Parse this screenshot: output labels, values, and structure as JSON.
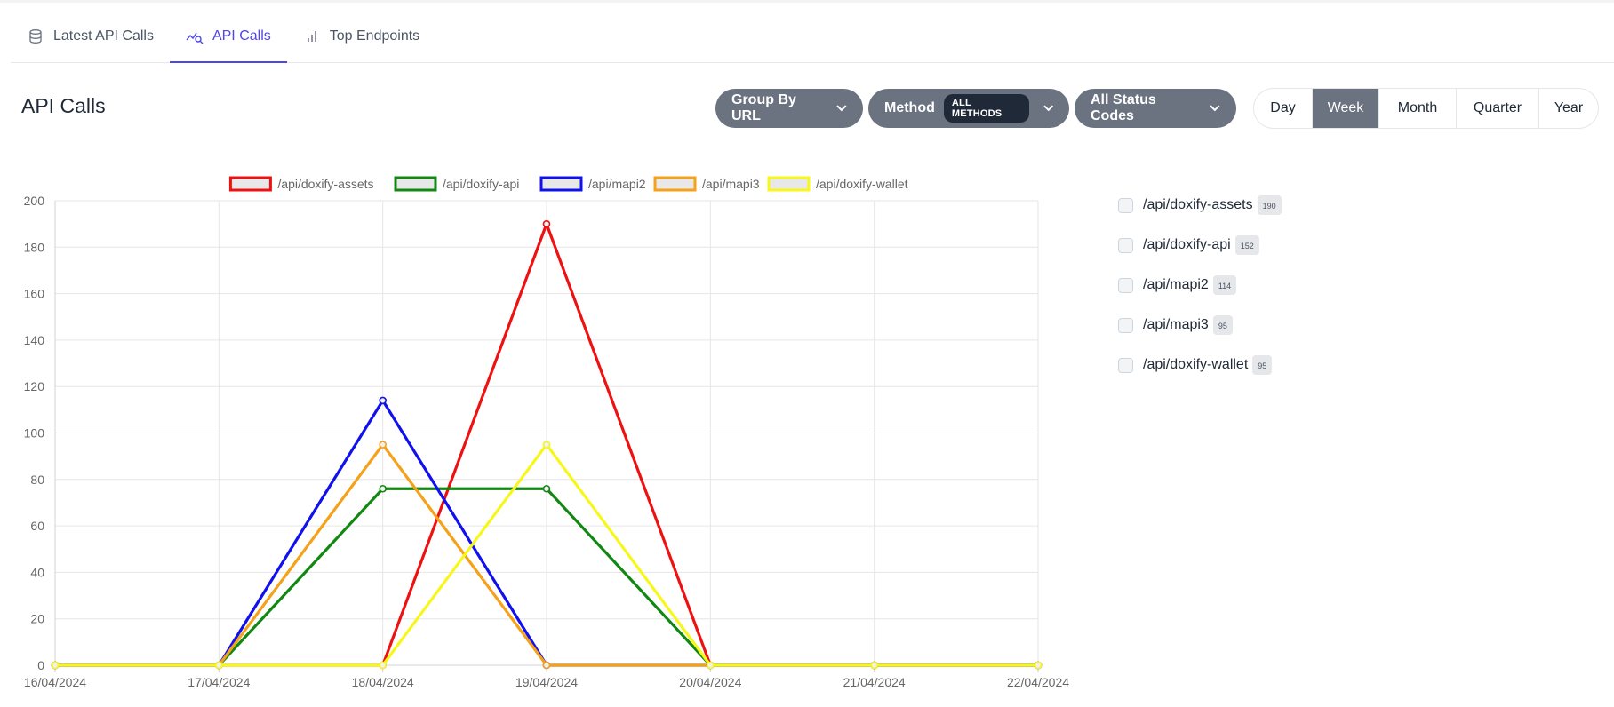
{
  "tabs": [
    {
      "label": "Latest API Calls",
      "icon": "database-icon"
    },
    {
      "label": "API Calls",
      "icon": "line-chart-icon",
      "active": true
    },
    {
      "label": "Top Endpoints",
      "icon": "bar-chart-icon"
    }
  ],
  "page_title": "API Calls",
  "filters": {
    "group_by": "Group By URL",
    "method_label": "Method",
    "method_badge": "ALL METHODS",
    "status": "All Status Codes"
  },
  "ranges": [
    "Day",
    "Week",
    "Month",
    "Quarter",
    "Year"
  ],
  "active_range": "Week",
  "endpoints": [
    {
      "label": "/api/doxify-assets",
      "count": "190"
    },
    {
      "label": "/api/doxify-api",
      "count": "152"
    },
    {
      "label": "/api/mapi2",
      "count": "114"
    },
    {
      "label": "/api/mapi3",
      "count": "95"
    },
    {
      "label": "/api/doxify-wallet",
      "count": "95"
    }
  ],
  "chart_data": {
    "type": "line",
    "x": [
      "16/04/2024",
      "17/04/2024",
      "18/04/2024",
      "19/04/2024",
      "20/04/2024",
      "21/04/2024",
      "22/04/2024"
    ],
    "ylim": [
      0,
      200
    ],
    "yticks": [
      0,
      20,
      40,
      60,
      80,
      100,
      120,
      140,
      160,
      180,
      200
    ],
    "grid": true,
    "legend": "top",
    "series": [
      {
        "name": "/api/doxify-assets",
        "color": "#ee1111",
        "values": [
          0,
          0,
          0,
          190,
          0,
          0,
          0
        ]
      },
      {
        "name": "/api/doxify-api",
        "color": "#118811",
        "values": [
          0,
          0,
          76,
          76,
          0,
          0,
          0
        ]
      },
      {
        "name": "/api/mapi2",
        "color": "#1111ee",
        "values": [
          0,
          0,
          114,
          0,
          0,
          0,
          0
        ]
      },
      {
        "name": "/api/mapi3",
        "color": "#f5a11a",
        "values": [
          0,
          0,
          95,
          0,
          0,
          0,
          0
        ]
      },
      {
        "name": "/api/doxify-wallet",
        "color": "#f7f71c",
        "values": [
          0,
          0,
          0,
          95,
          0,
          0,
          0
        ]
      }
    ]
  }
}
